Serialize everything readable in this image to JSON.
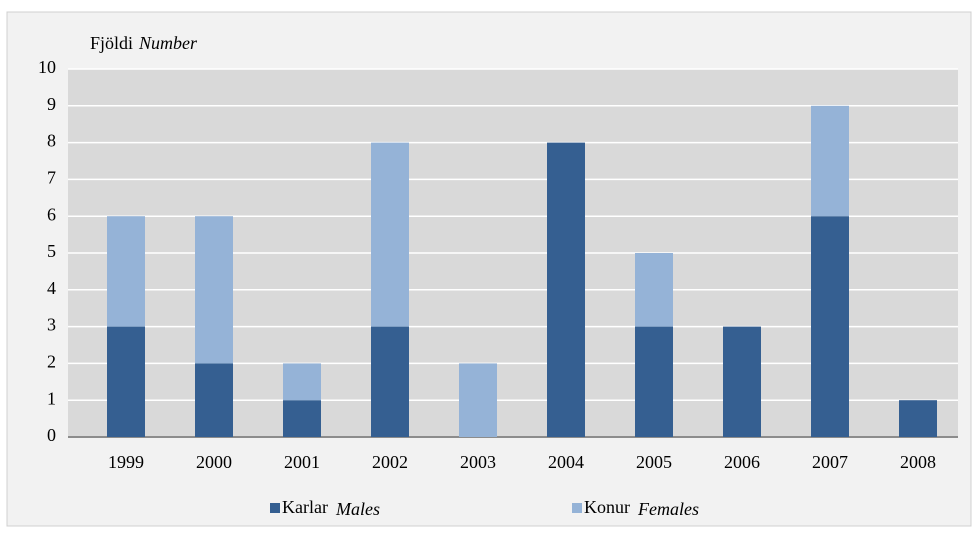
{
  "chart_data": {
    "type": "stacked-bar",
    "ylabel": "Fjöldi",
    "ylabel_en": "Number",
    "categories": [
      "1999",
      "2000",
      "2001",
      "2002",
      "2003",
      "2004",
      "2005",
      "2006",
      "2007",
      "2008"
    ],
    "series": [
      {
        "name": "Karlar",
        "name_en": "Males",
        "color": "#355f91",
        "values": [
          3,
          2,
          1,
          3,
          0,
          8,
          3,
          3,
          6,
          1
        ]
      },
      {
        "name": "Konur",
        "name_en": "Females",
        "color": "#95b3d7",
        "values": [
          3,
          4,
          1,
          5,
          2,
          0,
          2,
          0,
          3,
          0
        ]
      }
    ],
    "ylim": [
      0,
      10
    ],
    "yticks": [
      0,
      1,
      2,
      3,
      4,
      5,
      6,
      7,
      8,
      9,
      10
    ],
    "grid": true,
    "legend": "bottom"
  }
}
